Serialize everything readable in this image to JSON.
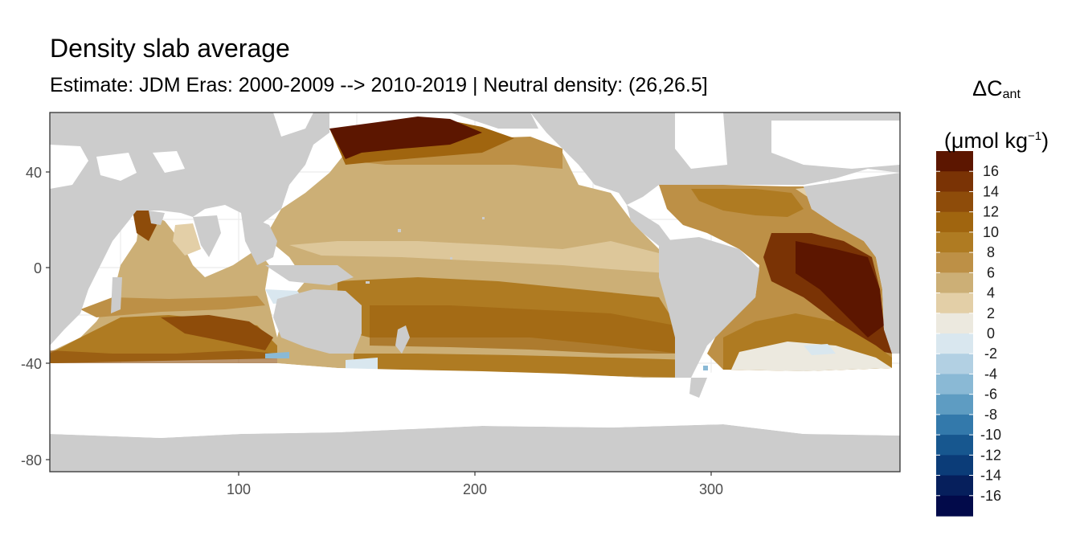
{
  "header": {
    "title": "Density slab average",
    "subtitle": "Estimate: JDM Eras: 2000-2009 --> 2010-2019 | Neutral density: (26,26.5]"
  },
  "legend": {
    "symbol": "ΔC",
    "symbol_sub": "ant",
    "unit_prefix": "(μmol kg",
    "unit_sup": "−1",
    "unit_suffix": ")",
    "breaks": [
      "16",
      "14",
      "12",
      "10",
      "8",
      "6",
      "4",
      "2",
      "0",
      "-2",
      "-4",
      "-6",
      "-8",
      "-10",
      "-12",
      "-14",
      "-16"
    ],
    "colors": [
      "#5c1600",
      "#7a3305",
      "#8e4c0a",
      "#a0650f",
      "#af7b22",
      "#bd9046",
      "#ccaf76",
      "#e3cfa7",
      "#ece9df",
      "#d9e7ef",
      "#b2d0e3",
      "#8ab9d5",
      "#5e9cc2",
      "#3379ab",
      "#17578f",
      "#0b3c78",
      "#061f5c",
      "#020a4a"
    ]
  },
  "axes": {
    "x_ticks": [
      "100",
      "200",
      "300"
    ],
    "y_ticks": [
      "40",
      "0",
      "-40",
      "-80"
    ]
  },
  "map": {
    "land_color": "#cccccc",
    "panel_background": "#ffffff",
    "grid_color": "#ebebeb"
  }
}
